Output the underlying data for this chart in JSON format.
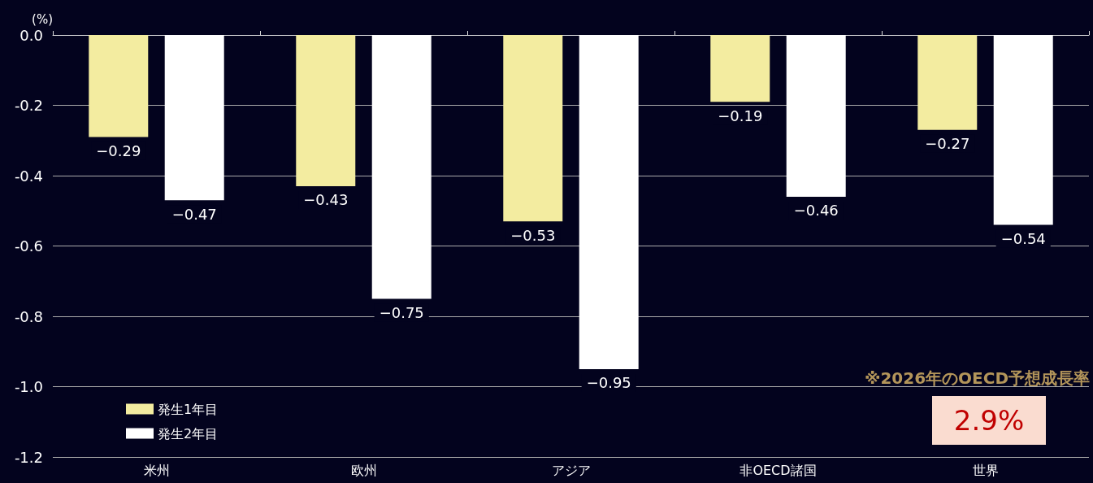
{
  "chart_data": {
    "type": "bar",
    "ylabel": "(%)",
    "categories": [
      "米州",
      "欧州",
      "アジア",
      "非OECD諸国",
      "世界"
    ],
    "series": [
      {
        "name": "発生1年目",
        "color": "#f3eca0",
        "values": [
          -0.29,
          -0.43,
          -0.53,
          -0.19,
          -0.27
        ],
        "value_labels": [
          "−0.29",
          "−0.43",
          "−0.53",
          "−0.19",
          "−0.27"
        ]
      },
      {
        "name": "発生2年目",
        "color": "#ffffff",
        "values": [
          -0.47,
          -0.75,
          -0.95,
          -0.46,
          -0.54
        ],
        "value_labels": [
          "−0.47",
          "−0.75",
          "−0.95",
          "−0.46",
          "−0.54"
        ]
      }
    ],
    "ylim": [
      -1.2,
      0
    ],
    "yticks": [
      {
        "value": 0,
        "label": "0.0"
      },
      -0.2,
      -0.4,
      -0.6,
      -0.8,
      {
        "value": -1,
        "label": "-1.0"
      },
      -1.2
    ],
    "grid": "y",
    "legend": "bottom left",
    "annotations": [
      "※2026年のOECD予想成長率",
      "2.9%"
    ]
  }
}
